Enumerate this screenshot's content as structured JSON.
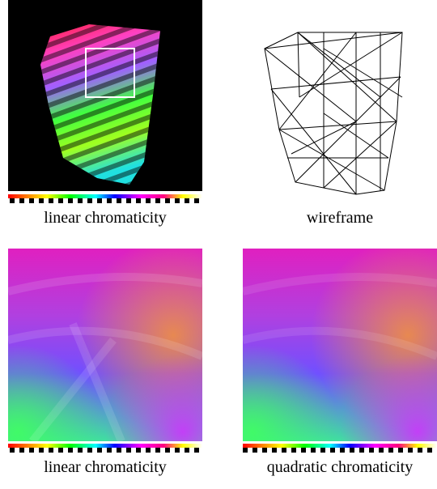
{
  "panels": [
    {
      "caption": "linear chromaticity"
    },
    {
      "caption": "wireframe"
    },
    {
      "caption": "linear chromaticity"
    },
    {
      "caption": "quadratic chromaticity"
    }
  ]
}
